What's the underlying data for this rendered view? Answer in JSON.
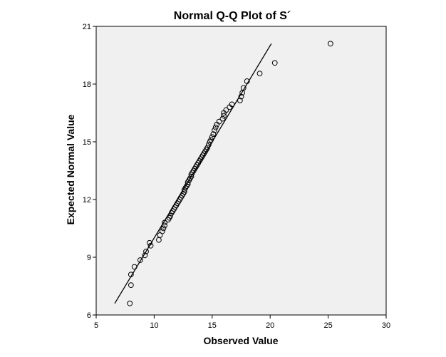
{
  "chart_data": {
    "type": "scatter",
    "title": "Normal Q-Q Plot of S´",
    "xlabel": "Observed Value",
    "ylabel": "Expected Normal Value",
    "xlim": [
      5,
      30
    ],
    "ylim": [
      6,
      21
    ],
    "xticks": [
      "5",
      "10",
      "15",
      "20",
      "25",
      "30"
    ],
    "yticks": [
      "6",
      "9",
      "12",
      "15",
      "18",
      "21"
    ],
    "grid": false,
    "plot_background": "#f0f0f0",
    "series": [
      {
        "marker": "open-circle",
        "points": [
          [
            7.9,
            6.6
          ],
          [
            8.0,
            7.55
          ],
          [
            8.0,
            8.1
          ],
          [
            8.3,
            8.5
          ],
          [
            8.8,
            8.85
          ],
          [
            9.2,
            9.1
          ],
          [
            9.3,
            9.3
          ],
          [
            9.7,
            9.6
          ],
          [
            9.6,
            9.75
          ],
          [
            10.4,
            9.9
          ],
          [
            10.5,
            10.15
          ],
          [
            10.7,
            10.35
          ],
          [
            10.8,
            10.5
          ],
          [
            10.9,
            10.65
          ],
          [
            10.9,
            10.8
          ],
          [
            11.2,
            10.95
          ],
          [
            11.3,
            11.05
          ],
          [
            11.4,
            11.15
          ],
          [
            11.5,
            11.3
          ],
          [
            11.6,
            11.4
          ],
          [
            11.7,
            11.5
          ],
          [
            11.8,
            11.6
          ],
          [
            11.9,
            11.7
          ],
          [
            12.0,
            11.8
          ],
          [
            12.1,
            11.9
          ],
          [
            12.2,
            12.0
          ],
          [
            12.3,
            12.1
          ],
          [
            12.4,
            12.2
          ],
          [
            12.5,
            12.3
          ],
          [
            12.6,
            12.4
          ],
          [
            12.6,
            12.5
          ],
          [
            12.7,
            12.6
          ],
          [
            12.8,
            12.7
          ],
          [
            12.9,
            12.8
          ],
          [
            12.9,
            12.9
          ],
          [
            13.0,
            13.0
          ],
          [
            13.1,
            13.1
          ],
          [
            13.2,
            13.2
          ],
          [
            13.2,
            13.3
          ],
          [
            13.3,
            13.4
          ],
          [
            13.4,
            13.5
          ],
          [
            13.5,
            13.6
          ],
          [
            13.6,
            13.7
          ],
          [
            13.7,
            13.8
          ],
          [
            13.8,
            13.9
          ],
          [
            13.9,
            14.0
          ],
          [
            14.0,
            14.1
          ],
          [
            14.1,
            14.2
          ],
          [
            14.2,
            14.3
          ],
          [
            14.3,
            14.4
          ],
          [
            14.4,
            14.5
          ],
          [
            14.5,
            14.6
          ],
          [
            14.6,
            14.7
          ],
          [
            14.7,
            14.85
          ],
          [
            14.8,
            15.0
          ],
          [
            14.9,
            15.1
          ],
          [
            15.0,
            15.25
          ],
          [
            15.1,
            15.4
          ],
          [
            15.2,
            15.6
          ],
          [
            15.3,
            15.75
          ],
          [
            15.4,
            15.9
          ],
          [
            15.6,
            16.05
          ],
          [
            15.9,
            16.2
          ],
          [
            16.0,
            16.35
          ],
          [
            16.0,
            16.5
          ],
          [
            16.2,
            16.65
          ],
          [
            16.5,
            16.8
          ],
          [
            16.7,
            16.95
          ],
          [
            17.4,
            17.15
          ],
          [
            17.5,
            17.35
          ],
          [
            17.6,
            17.55
          ],
          [
            17.7,
            17.8
          ],
          [
            18.0,
            18.15
          ],
          [
            19.1,
            18.55
          ],
          [
            20.4,
            19.1
          ],
          [
            25.2,
            20.1
          ]
        ]
      }
    ],
    "reference_line": {
      "from": [
        6.6,
        6.6
      ],
      "to": [
        20.1,
        20.1
      ]
    }
  }
}
